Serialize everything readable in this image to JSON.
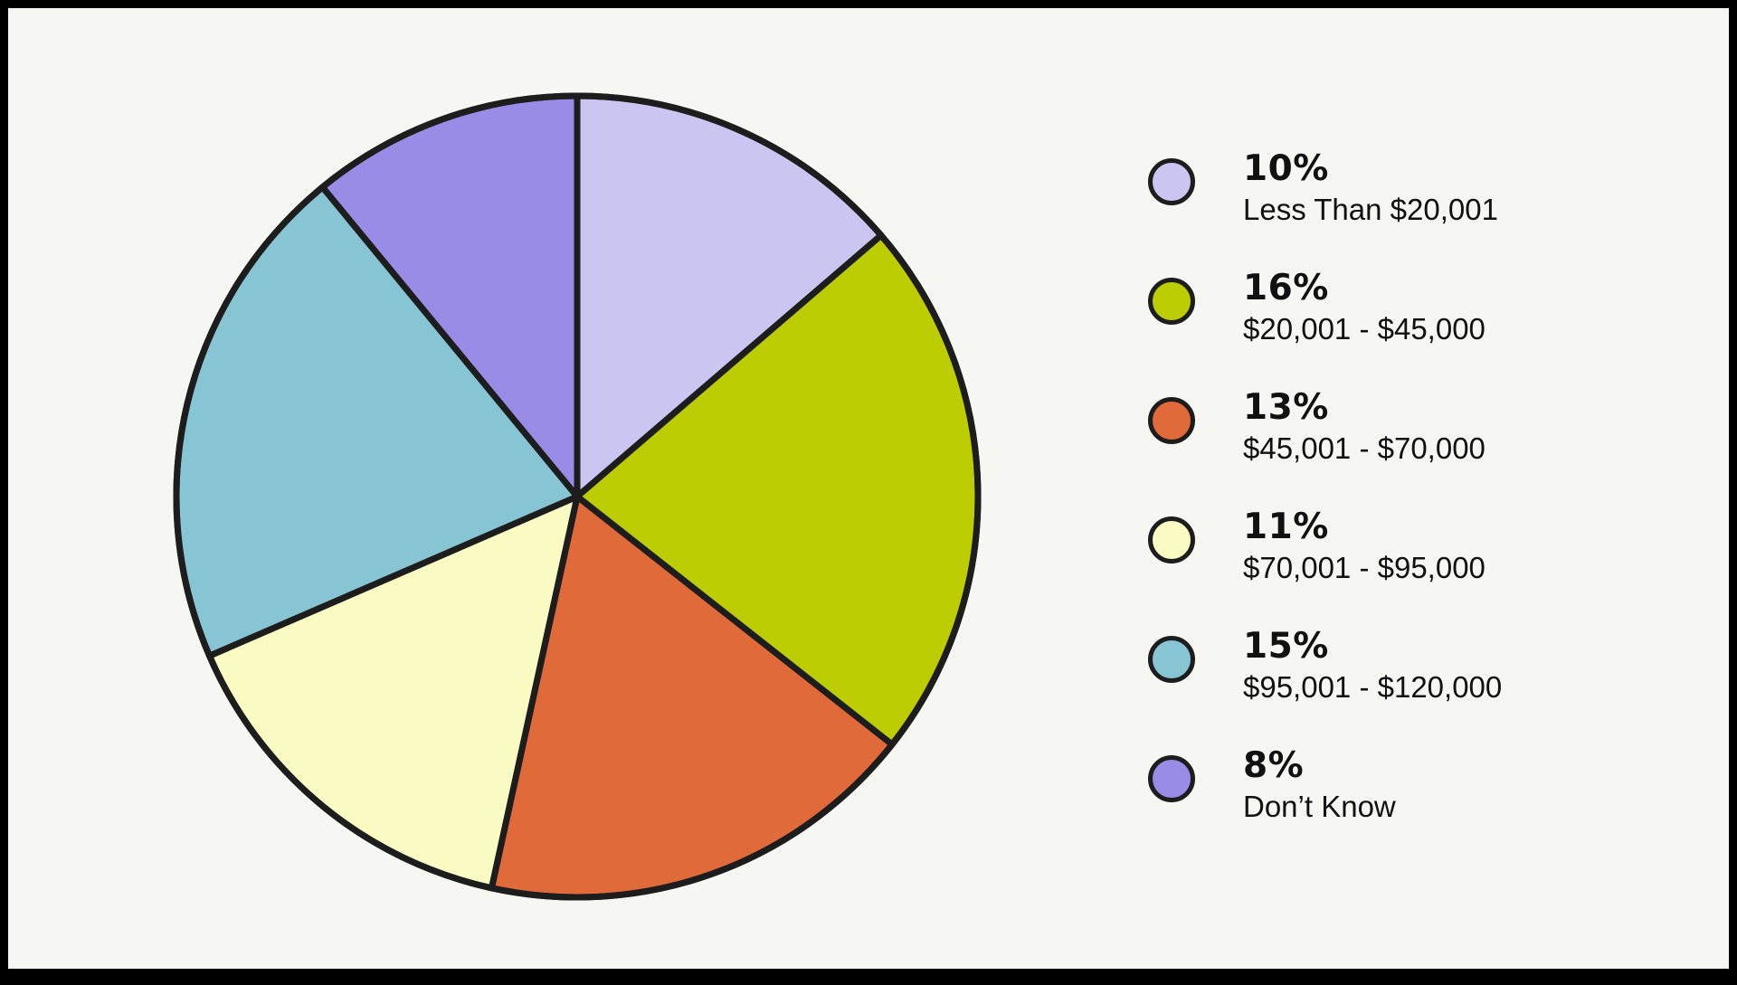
{
  "chart_data": {
    "type": "pie",
    "categories": [
      "Less Than $20,001",
      "$20,001 - $45,000",
      "$45,001 - $70,000",
      "$70,001 - $95,000",
      "$95,001 - $120,000",
      "Don’t Know"
    ],
    "values": [
      10,
      16,
      13,
      11,
      15,
      8
    ],
    "value_labels": [
      "10%",
      "16%",
      "13%",
      "11%",
      "15%",
      "8%"
    ],
    "colors": [
      "#cbc5f1",
      "#bcce03",
      "#e06a39",
      "#f9fbc2",
      "#87c5d4",
      "#998ce6"
    ],
    "start_angle": "12 o'clock",
    "direction": "clockwise",
    "legend_position": "right",
    "title": ""
  },
  "legend": [
    {
      "pct": "10%",
      "label": "Less Than $20,001"
    },
    {
      "pct": "16%",
      "label": "$20,001 - $45,000"
    },
    {
      "pct": "13%",
      "label": "$45,001 - $70,000"
    },
    {
      "pct": "11%",
      "label": "$70,001 - $95,000"
    },
    {
      "pct": "15%",
      "label": "$95,001 - $120,000"
    },
    {
      "pct": "8%",
      "label": "Don’t Know"
    }
  ]
}
